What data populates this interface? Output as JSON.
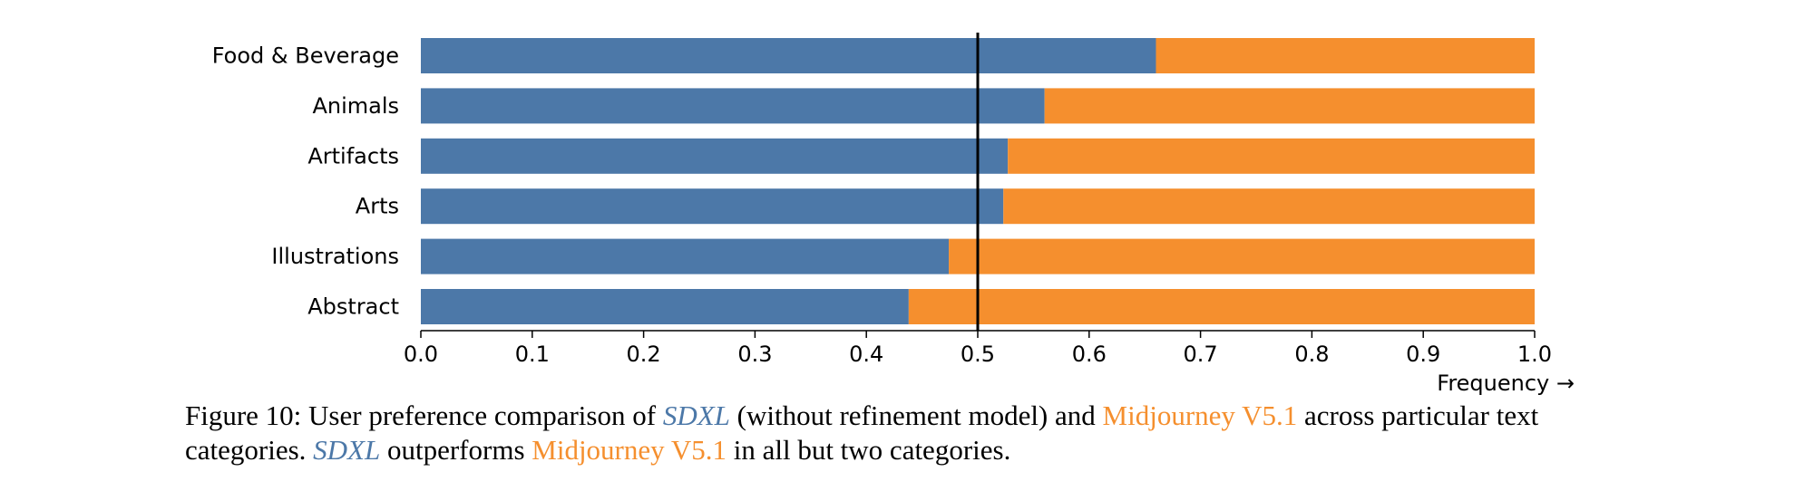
{
  "chart_data": {
    "type": "bar",
    "orientation": "horizontal",
    "stacked": true,
    "categories": [
      "Food & Beverage",
      "Animals",
      "Artifacts",
      "Arts",
      "Illustrations",
      "Abstract"
    ],
    "series": [
      {
        "name": "SDXL",
        "color": "#4c78a8",
        "values": [
          0.66,
          0.56,
          0.527,
          0.523,
          0.474,
          0.438
        ]
      },
      {
        "name": "Midjourney V5.1",
        "color": "#f58f2e",
        "values": [
          0.34,
          0.44,
          0.473,
          0.477,
          0.526,
          0.562
        ]
      }
    ],
    "reference_line": 0.5,
    "xlim": [
      0.0,
      1.0
    ],
    "xticks": [
      "0.0",
      "0.1",
      "0.2",
      "0.3",
      "0.4",
      "0.5",
      "0.6",
      "0.7",
      "0.8",
      "0.9",
      "1.0"
    ],
    "xlabel": "Frequency →",
    "title": ""
  },
  "caption": {
    "prefix": "Figure 10: User preference comparison of ",
    "sdxl_1": "SDXL",
    "mid_1": " (without refinement model) and ",
    "mj_1": "Midjourney V5.1",
    "mid_2": " across particular text categories. ",
    "sdxl_2": "SDXL",
    "mid_3": " outperforms ",
    "mj_2": "Midjourney V5.1",
    "suffix": " in all but two categories."
  },
  "colors": {
    "sdxl": "#4c78a8",
    "midjourney": "#f58f2e"
  }
}
